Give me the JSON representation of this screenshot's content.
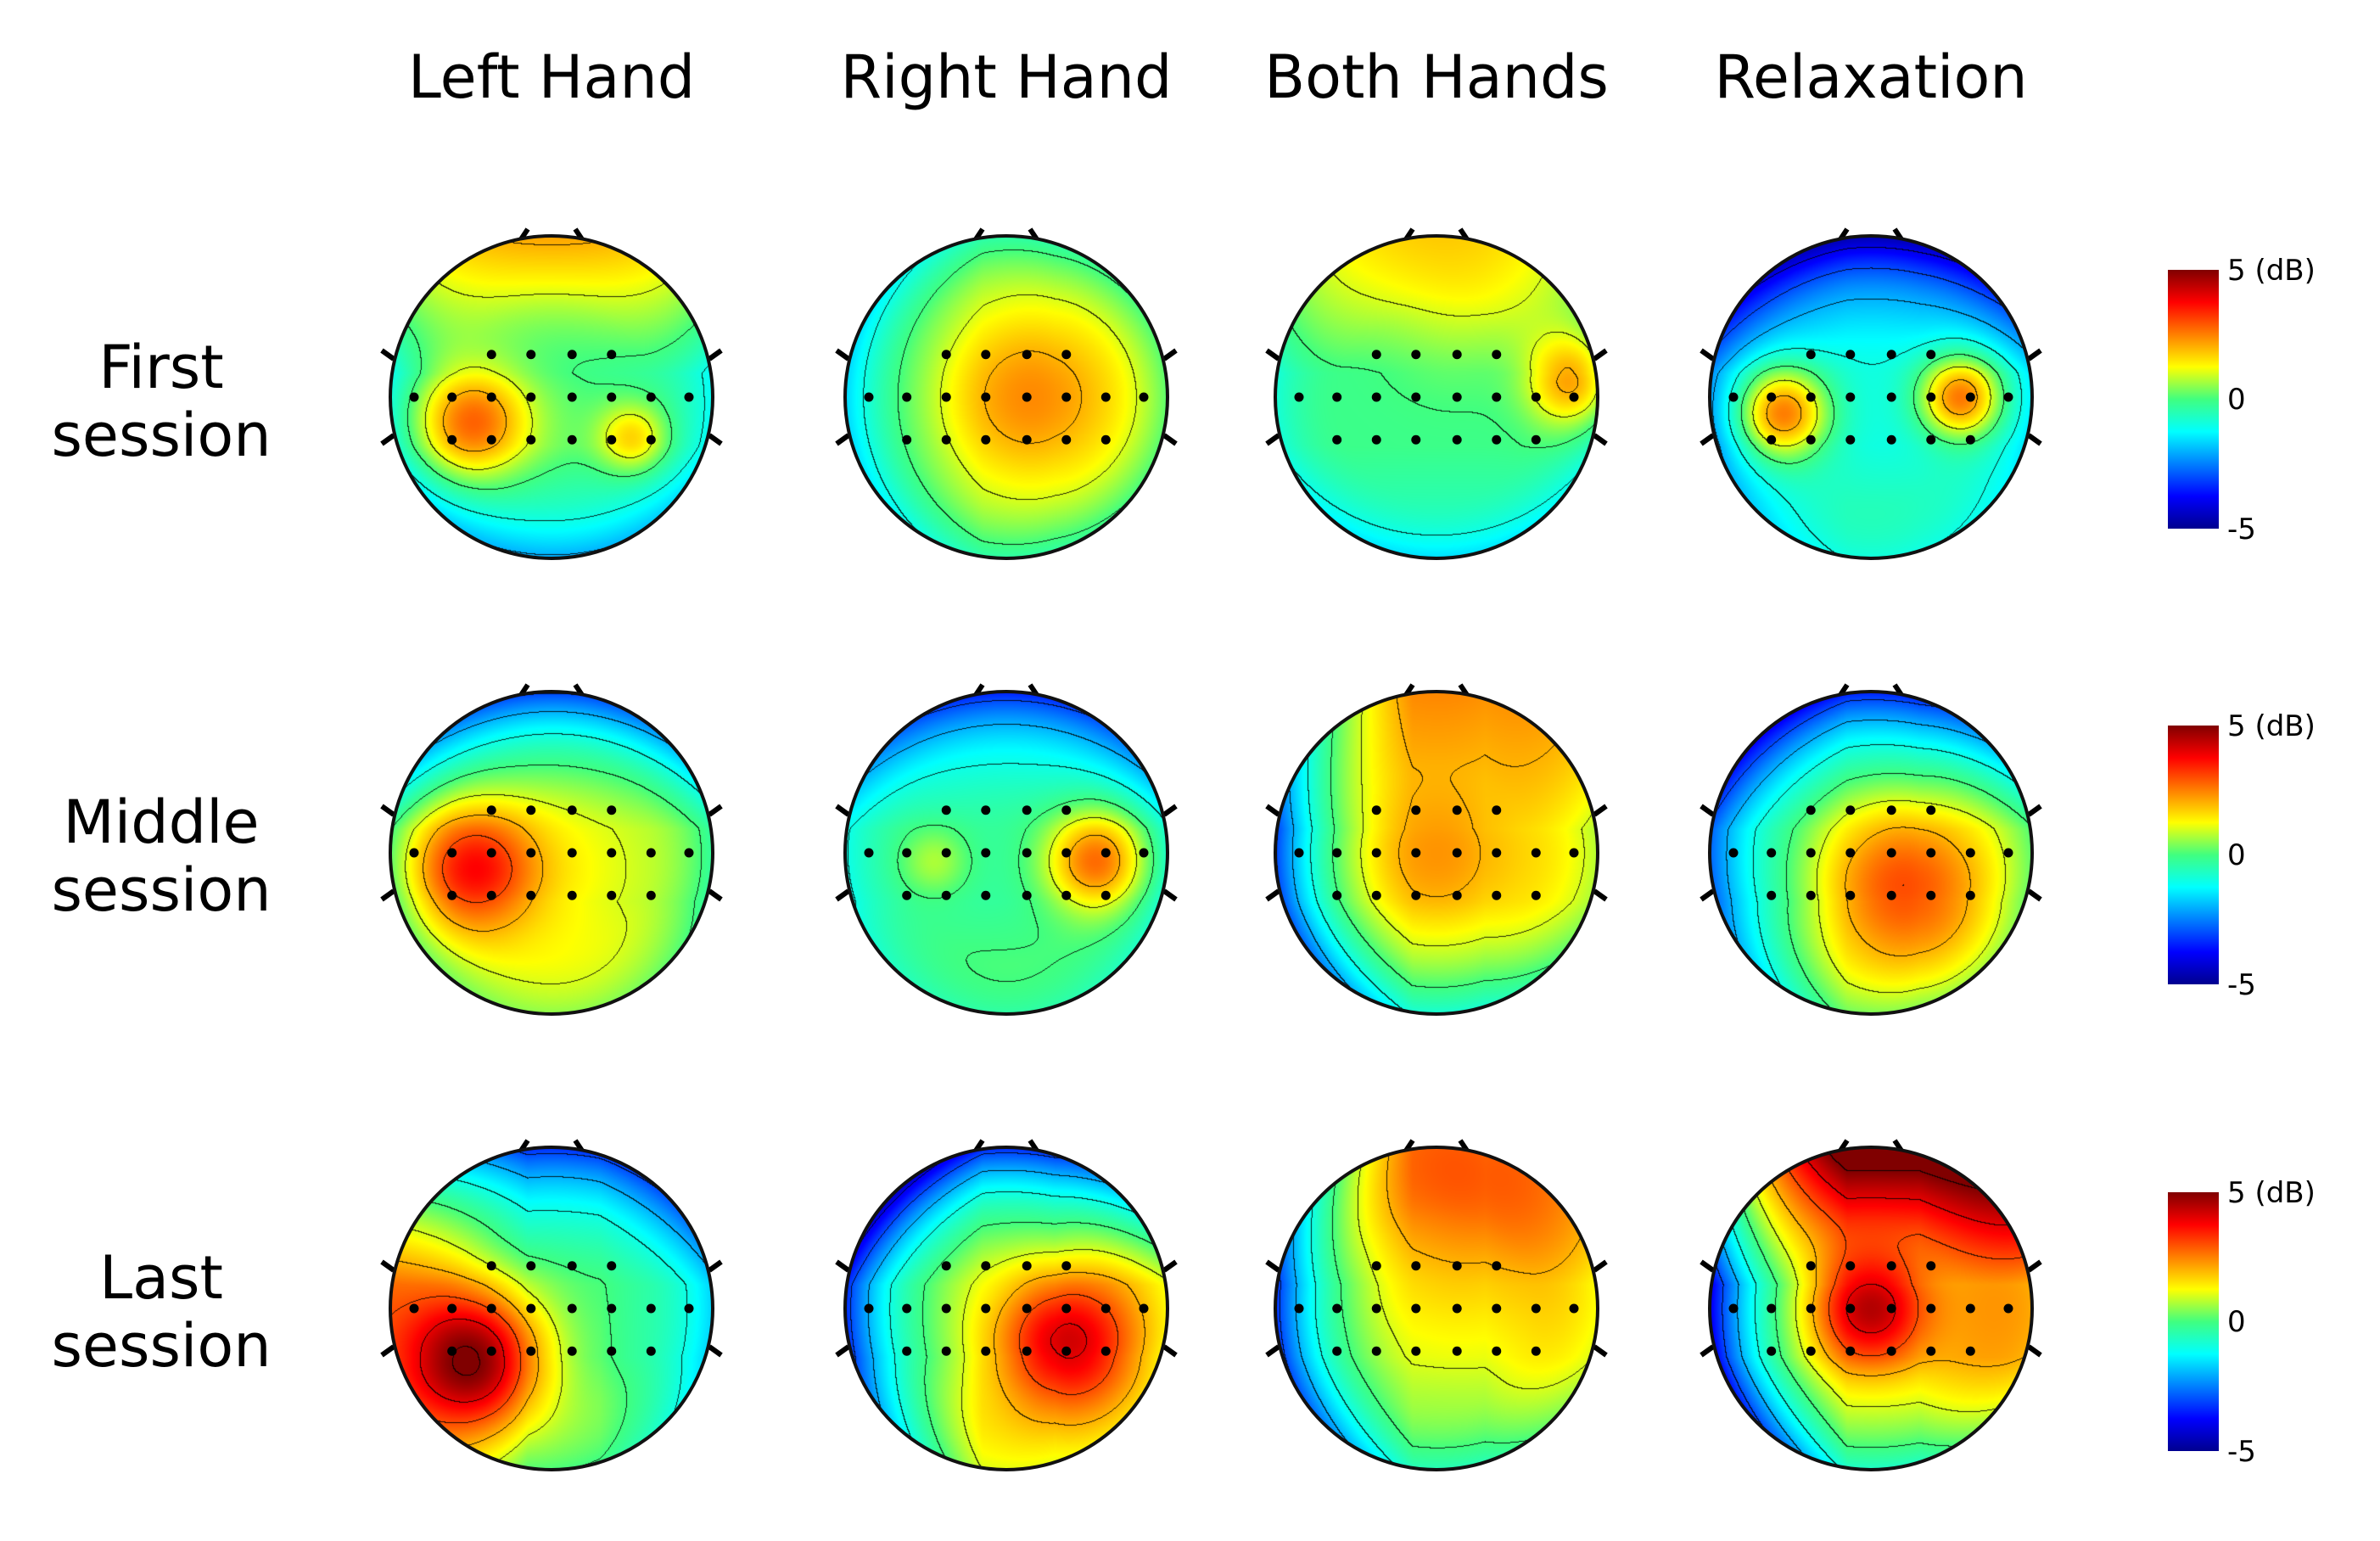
{
  "chart_data": {
    "type": "heatmap",
    "description_unit": "dB",
    "columns": [
      "Left Hand",
      "Right Hand",
      "Both Hands",
      "Relaxation"
    ],
    "rows": [
      [
        "First",
        "session"
      ],
      [
        "Middle",
        "session"
      ],
      [
        "Last",
        "session"
      ]
    ],
    "colorbar": {
      "max_label": "5 (dB)",
      "mid_label": "0",
      "min_label": "-5",
      "min": -5,
      "max": 5
    },
    "electrodes": [
      [
        -0.38,
        -0.27
      ],
      [
        -0.13,
        -0.27
      ],
      [
        0.13,
        -0.27
      ],
      [
        0.38,
        -0.27
      ],
      [
        -0.87,
        0.0
      ],
      [
        -0.63,
        0.0
      ],
      [
        -0.38,
        0.0
      ],
      [
        -0.13,
        0.0
      ],
      [
        0.13,
        0.0
      ],
      [
        0.38,
        0.0
      ],
      [
        0.63,
        0.0
      ],
      [
        0.87,
        0.0
      ],
      [
        -0.63,
        0.27
      ],
      [
        -0.38,
        0.27
      ],
      [
        -0.13,
        0.27
      ],
      [
        0.13,
        0.27
      ],
      [
        0.38,
        0.27
      ],
      [
        0.63,
        0.27
      ]
    ],
    "maps": [
      {
        "row": 0,
        "col": 0,
        "base": -0.5,
        "blobs": [
          [
            -0.5,
            0.15,
            3.0,
            0.25
          ],
          [
            0.5,
            0.25,
            1.8,
            0.15
          ],
          [
            0.05,
            0.2,
            0.6,
            0.45
          ]
        ],
        "gradient": [
          0,
          4.0,
          0.75
        ]
      },
      {
        "row": 0,
        "col": 1,
        "base": 0.2,
        "blobs": [
          [
            0.15,
            0.0,
            2.2,
            0.45
          ]
        ],
        "gradient": [
          -1.4,
          0,
          0.55
        ]
      },
      {
        "row": 0,
        "col": 2,
        "base": -0.1,
        "blobs": [
          [
            0.85,
            -0.1,
            2.5,
            0.2
          ],
          [
            0.1,
            -0.45,
            0.5,
            0.3
          ]
        ],
        "gradient": [
          0,
          3.0,
          0.85
        ]
      },
      {
        "row": 0,
        "col": 3,
        "base": -1.0,
        "blobs": [
          [
            -0.55,
            0.1,
            3.7,
            0.2
          ],
          [
            0.55,
            0.0,
            3.5,
            0.18
          ]
        ],
        "gradient": [
          -0.8,
          -3.4,
          0.9
        ]
      },
      {
        "row": 1,
        "col": 0,
        "base": 0.3,
        "blobs": [
          [
            -0.5,
            0.1,
            3.0,
            0.28
          ],
          [
            0.1,
            0.1,
            0.9,
            0.5
          ]
        ],
        "gradient": [
          0,
          -3.2,
          0.9
        ]
      },
      {
        "row": 1,
        "col": 1,
        "base": -0.3,
        "blobs": [
          [
            0.55,
            0.05,
            3.0,
            0.22
          ],
          [
            -0.45,
            0.05,
            1.0,
            0.15
          ]
        ],
        "gradient": [
          0,
          -2.8,
          0.8
        ]
      },
      {
        "row": 1,
        "col": 2,
        "base": 0.5,
        "blobs": [
          [
            0.0,
            0.0,
            1.8,
            0.45
          ]
        ],
        "gradient": [
          -3.5,
          3.0,
          0.95
        ]
      },
      {
        "row": 1,
        "col": 3,
        "base": 0.0,
        "blobs": [
          [
            0.2,
            0.2,
            3.0,
            0.4
          ]
        ],
        "gradient": [
          -2.4,
          -3.2,
          0.75
        ]
      },
      {
        "row": 2,
        "col": 0,
        "base": 0.0,
        "blobs": [
          [
            -0.45,
            0.3,
            4.2,
            0.3
          ]
        ],
        "gradient": [
          3.8,
          -3.0,
          0.6
        ]
      },
      {
        "row": 2,
        "col": 1,
        "base": 0.8,
        "blobs": [
          [
            0.35,
            0.2,
            3.3,
            0.3
          ]
        ],
        "gradient": [
          -4.0,
          -4.0,
          0.85
        ]
      },
      {
        "row": 2,
        "col": 2,
        "base": 0.8,
        "blobs": [
          [
            0.15,
            -0.5,
            1.2,
            0.5
          ]
        ],
        "gradient": [
          -4.0,
          2.5,
          0.95
        ]
      },
      {
        "row": 2,
        "col": 3,
        "base": 1.5,
        "blobs": [
          [
            0.0,
            0.0,
            3.0,
            0.25
          ]
        ],
        "gradient": [
          -5.5,
          6.0,
          0.7
        ]
      }
    ]
  }
}
